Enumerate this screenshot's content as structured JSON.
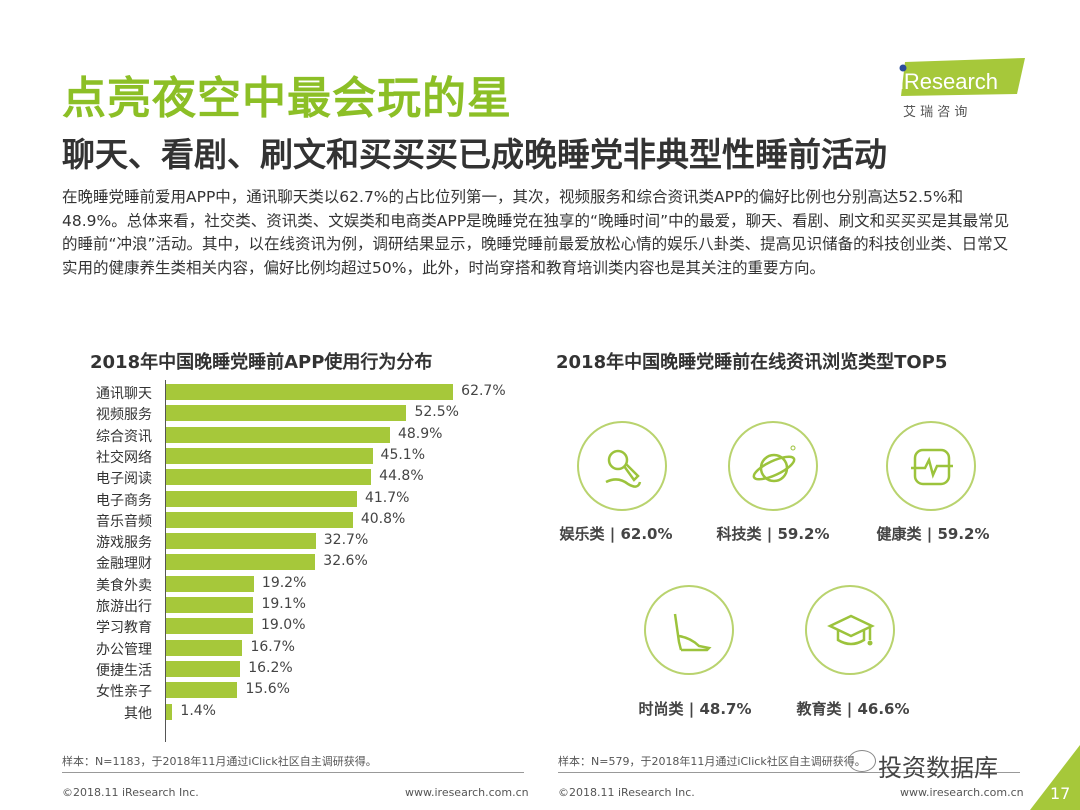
{
  "header": {
    "title": "点亮夜空中最会玩的星",
    "subtitle": "聊天、看剧、刷文和买买买已成晚睡党非典型性睡前活动",
    "logo_text": "iResearch",
    "logo_cn": "艾 瑞 咨 询"
  },
  "body_text": "在晚睡党睡前爱用APP中，通讯聊天类以62.7%的占比位列第一，其次，视频服务和综合资讯类APP的偏好比例也分别高达52.5%和48.9%。总体来看，社交类、资讯类、文娱类和电商类APP是晚睡党在独享的“晚睡时间”中的最爱，聊天、看剧、刷文和买买买是其最常见的睡前“冲浪”活动。其中，以在线资讯为例，调研结果显示，晚睡党睡前最爱放松心情的娱乐八卦类、提高见识储备的科技创业类、日常又实用的健康养生类相关内容，偏好比例均超过50%，此外，时尚穿搭和教育培训类内容也是其关注的重要方向。",
  "chart_data": [
    {
      "type": "bar",
      "orientation": "horizontal",
      "title": "2018年中国晚睡党睡前APP使用行为分布",
      "categories": [
        "通讯聊天",
        "视频服务",
        "综合资讯",
        "社交网络",
        "电子阅读",
        "电子商务",
        "音乐音频",
        "游戏服务",
        "金融理财",
        "美食外卖",
        "旅游出行",
        "学习教育",
        "办公管理",
        "便捷生活",
        "女性亲子",
        "其他"
      ],
      "values": [
        62.7,
        52.5,
        48.9,
        45.1,
        44.8,
        41.7,
        40.8,
        32.7,
        32.6,
        19.2,
        19.1,
        19.0,
        16.7,
        16.2,
        15.6,
        1.4
      ],
      "value_labels": [
        "62.7%",
        "52.5%",
        "48.9%",
        "45.1%",
        "44.8%",
        "41.7%",
        "40.8%",
        "32.7%",
        "32.6%",
        "19.2%",
        "19.1%",
        "19.0%",
        "16.7%",
        "16.2%",
        "15.6%",
        "1.4%"
      ],
      "unit": "%",
      "color": "#a6c83a"
    },
    {
      "type": "table",
      "title": "2018年中国晚睡党睡前在线资讯浏览类型TOP5",
      "items": [
        {
          "label": "娱乐类 | 62.0%",
          "icon": "microphone-icon"
        },
        {
          "label": "科技类 | 59.2%",
          "icon": "planet-icon"
        },
        {
          "label": "健康类 | 59.2%",
          "icon": "heartbeat-monitor-icon"
        },
        {
          "label": "时尚类 | 48.7%",
          "icon": "high-heel-icon"
        },
        {
          "label": "教育类 | 46.6%",
          "icon": "graduation-cap-icon"
        }
      ]
    }
  ],
  "footer": {
    "note_left": "样本：N=1183，于2018年11月通过iClick社区自主调研获得。",
    "note_right": "样本：N=579，于2018年11月通过iClick社区自主调研获得。",
    "copyright": "©2018.11 iResearch Inc.",
    "url": "www.iresearch.com.cn",
    "watermark": "投资数据库",
    "page": "17"
  },
  "colors": {
    "accent": "#8cbf26",
    "bar": "#a6c83a"
  }
}
